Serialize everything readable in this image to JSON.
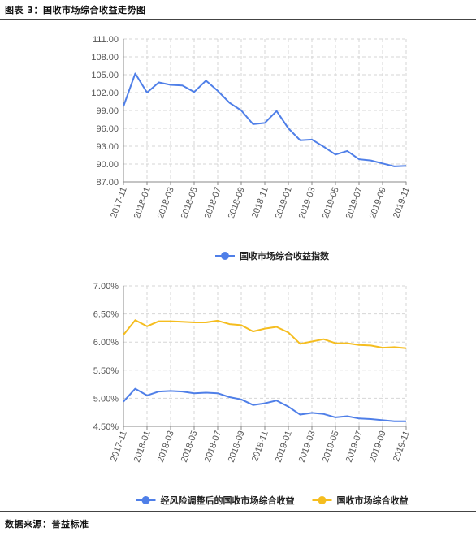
{
  "figure_title": "图表 3：国收市场综合收益走势图",
  "source_text": "数据来源：普益标准",
  "colors": {
    "blue": "#4f7fe8",
    "yellow": "#f5bd1f",
    "grid": "#d6d6d6",
    "axis": "#888888"
  },
  "chart_data": [
    {
      "type": "line",
      "x": [
        "2017-11",
        "2017-12",
        "2018-01",
        "2018-02",
        "2018-03",
        "2018-04",
        "2018-05",
        "2018-06",
        "2018-07",
        "2018-08",
        "2018-09",
        "2018-10",
        "2018-11",
        "2018-12",
        "2019-01",
        "2019-02",
        "2019-03",
        "2019-04",
        "2019-05",
        "2019-06",
        "2019-07",
        "2019-08",
        "2019-09",
        "2019-10",
        "2019-11"
      ],
      "x_tick_labels": [
        "2017-11",
        "2018-01",
        "2018-03",
        "2018-05",
        "2018-07",
        "2018-09",
        "2018-11",
        "2019-01",
        "2019-03",
        "2019-05",
        "2019-07",
        "2019-09",
        "2019-11"
      ],
      "y_ticks": [
        "111.00",
        "108.00",
        "105.00",
        "102.00",
        "99.00",
        "96.00",
        "93.00",
        "90.00",
        "87.00"
      ],
      "ylim": [
        87,
        111
      ],
      "grid": true,
      "legend_position": "bottom",
      "series": [
        {
          "name": "国收市场综合收益指数",
          "color": "#4f7fe8",
          "values": [
            99.7,
            105.2,
            102.0,
            103.7,
            103.3,
            103.2,
            102.1,
            104.0,
            102.3,
            100.3,
            99.0,
            96.7,
            96.9,
            98.9,
            96.0,
            94.0,
            94.1,
            92.9,
            91.6,
            92.2,
            90.8,
            90.6,
            90.1,
            89.6,
            89.7
          ]
        }
      ]
    },
    {
      "type": "line",
      "x": [
        "2017-11",
        "2017-12",
        "2018-01",
        "2018-02",
        "2018-03",
        "2018-04",
        "2018-05",
        "2018-06",
        "2018-07",
        "2018-08",
        "2018-09",
        "2018-10",
        "2018-11",
        "2018-12",
        "2019-01",
        "2019-02",
        "2019-03",
        "2019-04",
        "2019-05",
        "2019-06",
        "2019-07",
        "2019-08",
        "2019-09",
        "2019-10",
        "2019-11"
      ],
      "x_tick_labels": [
        "2017-11",
        "2018-01",
        "2018-03",
        "2018-05",
        "2018-07",
        "2018-09",
        "2018-11",
        "2019-01",
        "2019-03",
        "2019-05",
        "2019-07",
        "2019-09",
        "2019-11"
      ],
      "y_ticks": [
        "7.00%",
        "6.50%",
        "6.00%",
        "5.50%",
        "5.00%",
        "4.50%"
      ],
      "ylim": [
        4.5,
        7.0
      ],
      "grid": true,
      "legend_position": "bottom",
      "series": [
        {
          "name": "经风险调整后的国收市场综合收益",
          "color": "#4f7fe8",
          "values": [
            4.94,
            5.17,
            5.05,
            5.12,
            5.13,
            5.12,
            5.09,
            5.1,
            5.09,
            5.02,
            4.98,
            4.88,
            4.91,
            4.96,
            4.85,
            4.71,
            4.74,
            4.72,
            4.66,
            4.68,
            4.64,
            4.63,
            4.61,
            4.59,
            4.59
          ]
        },
        {
          "name": "国收市场综合收益",
          "color": "#f5bd1f",
          "values": [
            6.13,
            6.39,
            6.28,
            6.37,
            6.37,
            6.36,
            6.35,
            6.35,
            6.38,
            6.32,
            6.3,
            6.19,
            6.24,
            6.27,
            6.17,
            5.97,
            6.01,
            6.05,
            5.98,
            5.98,
            5.95,
            5.94,
            5.9,
            5.91,
            5.89
          ]
        }
      ]
    }
  ]
}
